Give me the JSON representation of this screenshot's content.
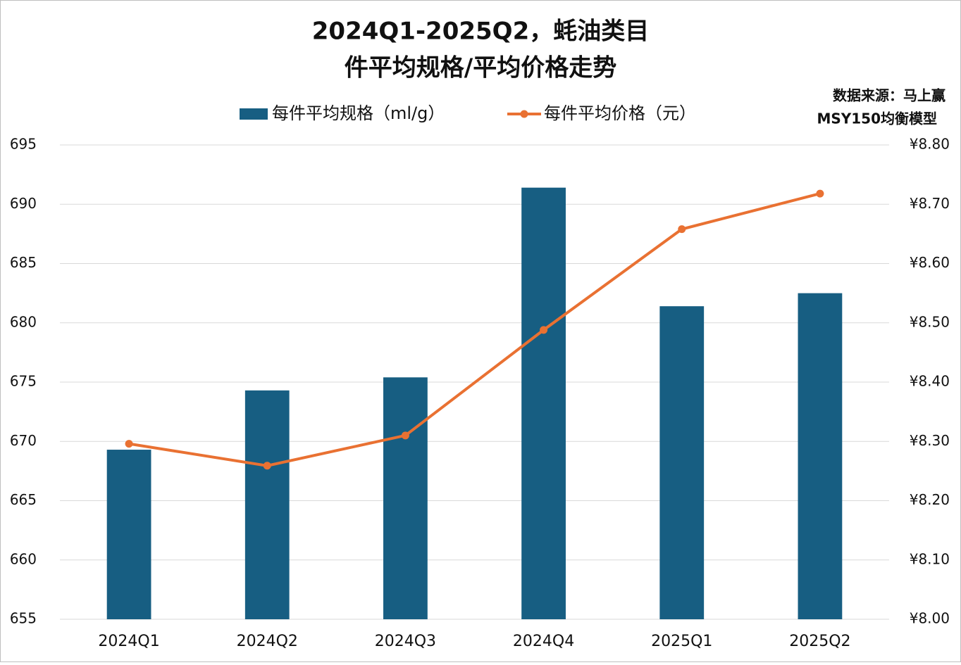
{
  "chart_data": {
    "type": "bar",
    "title": [
      "2024Q1-2025Q2，蚝油类目",
      "件平均规格/平均价格走势"
    ],
    "annotations": [
      "数据来源：马上赢",
      "MSY150均衡模型"
    ],
    "categories": [
      "2024Q1",
      "2024Q2",
      "2024Q3",
      "2024Q4",
      "2025Q1",
      "2025Q2"
    ],
    "series": [
      {
        "name": "每件平均规格（ml/g）",
        "type": "bar",
        "color": "#175e82",
        "values": [
          669.3,
          674.3,
          675.4,
          691.4,
          681.4,
          682.5
        ]
      },
      {
        "name": "每件平均价格（元）",
        "type": "line",
        "axis": "y2",
        "color": "#e97132",
        "values": [
          8.296,
          8.259,
          8.31,
          8.488,
          8.658,
          8.718
        ]
      }
    ],
    "ylim": [
      655,
      695
    ],
    "yticks": [
      655,
      660,
      665,
      670,
      675,
      680,
      685,
      690,
      695
    ],
    "y2lim": [
      8.0,
      8.8
    ],
    "y2ticks": [
      {
        "value": 8.0,
        "label": "¥8.00"
      },
      {
        "value": 8.1,
        "label": "¥8.10"
      },
      {
        "value": 8.2,
        "label": "¥8.20"
      },
      {
        "value": 8.3,
        "label": "¥8.30"
      },
      {
        "value": 8.4,
        "label": "¥8.40"
      },
      {
        "value": 8.5,
        "label": "¥8.50"
      },
      {
        "value": 8.6,
        "label": "¥8.60"
      },
      {
        "value": 8.7,
        "label": "¥8.70"
      },
      {
        "value": 8.8,
        "label": "¥8.80"
      }
    ],
    "grid": true,
    "legend": "top"
  }
}
